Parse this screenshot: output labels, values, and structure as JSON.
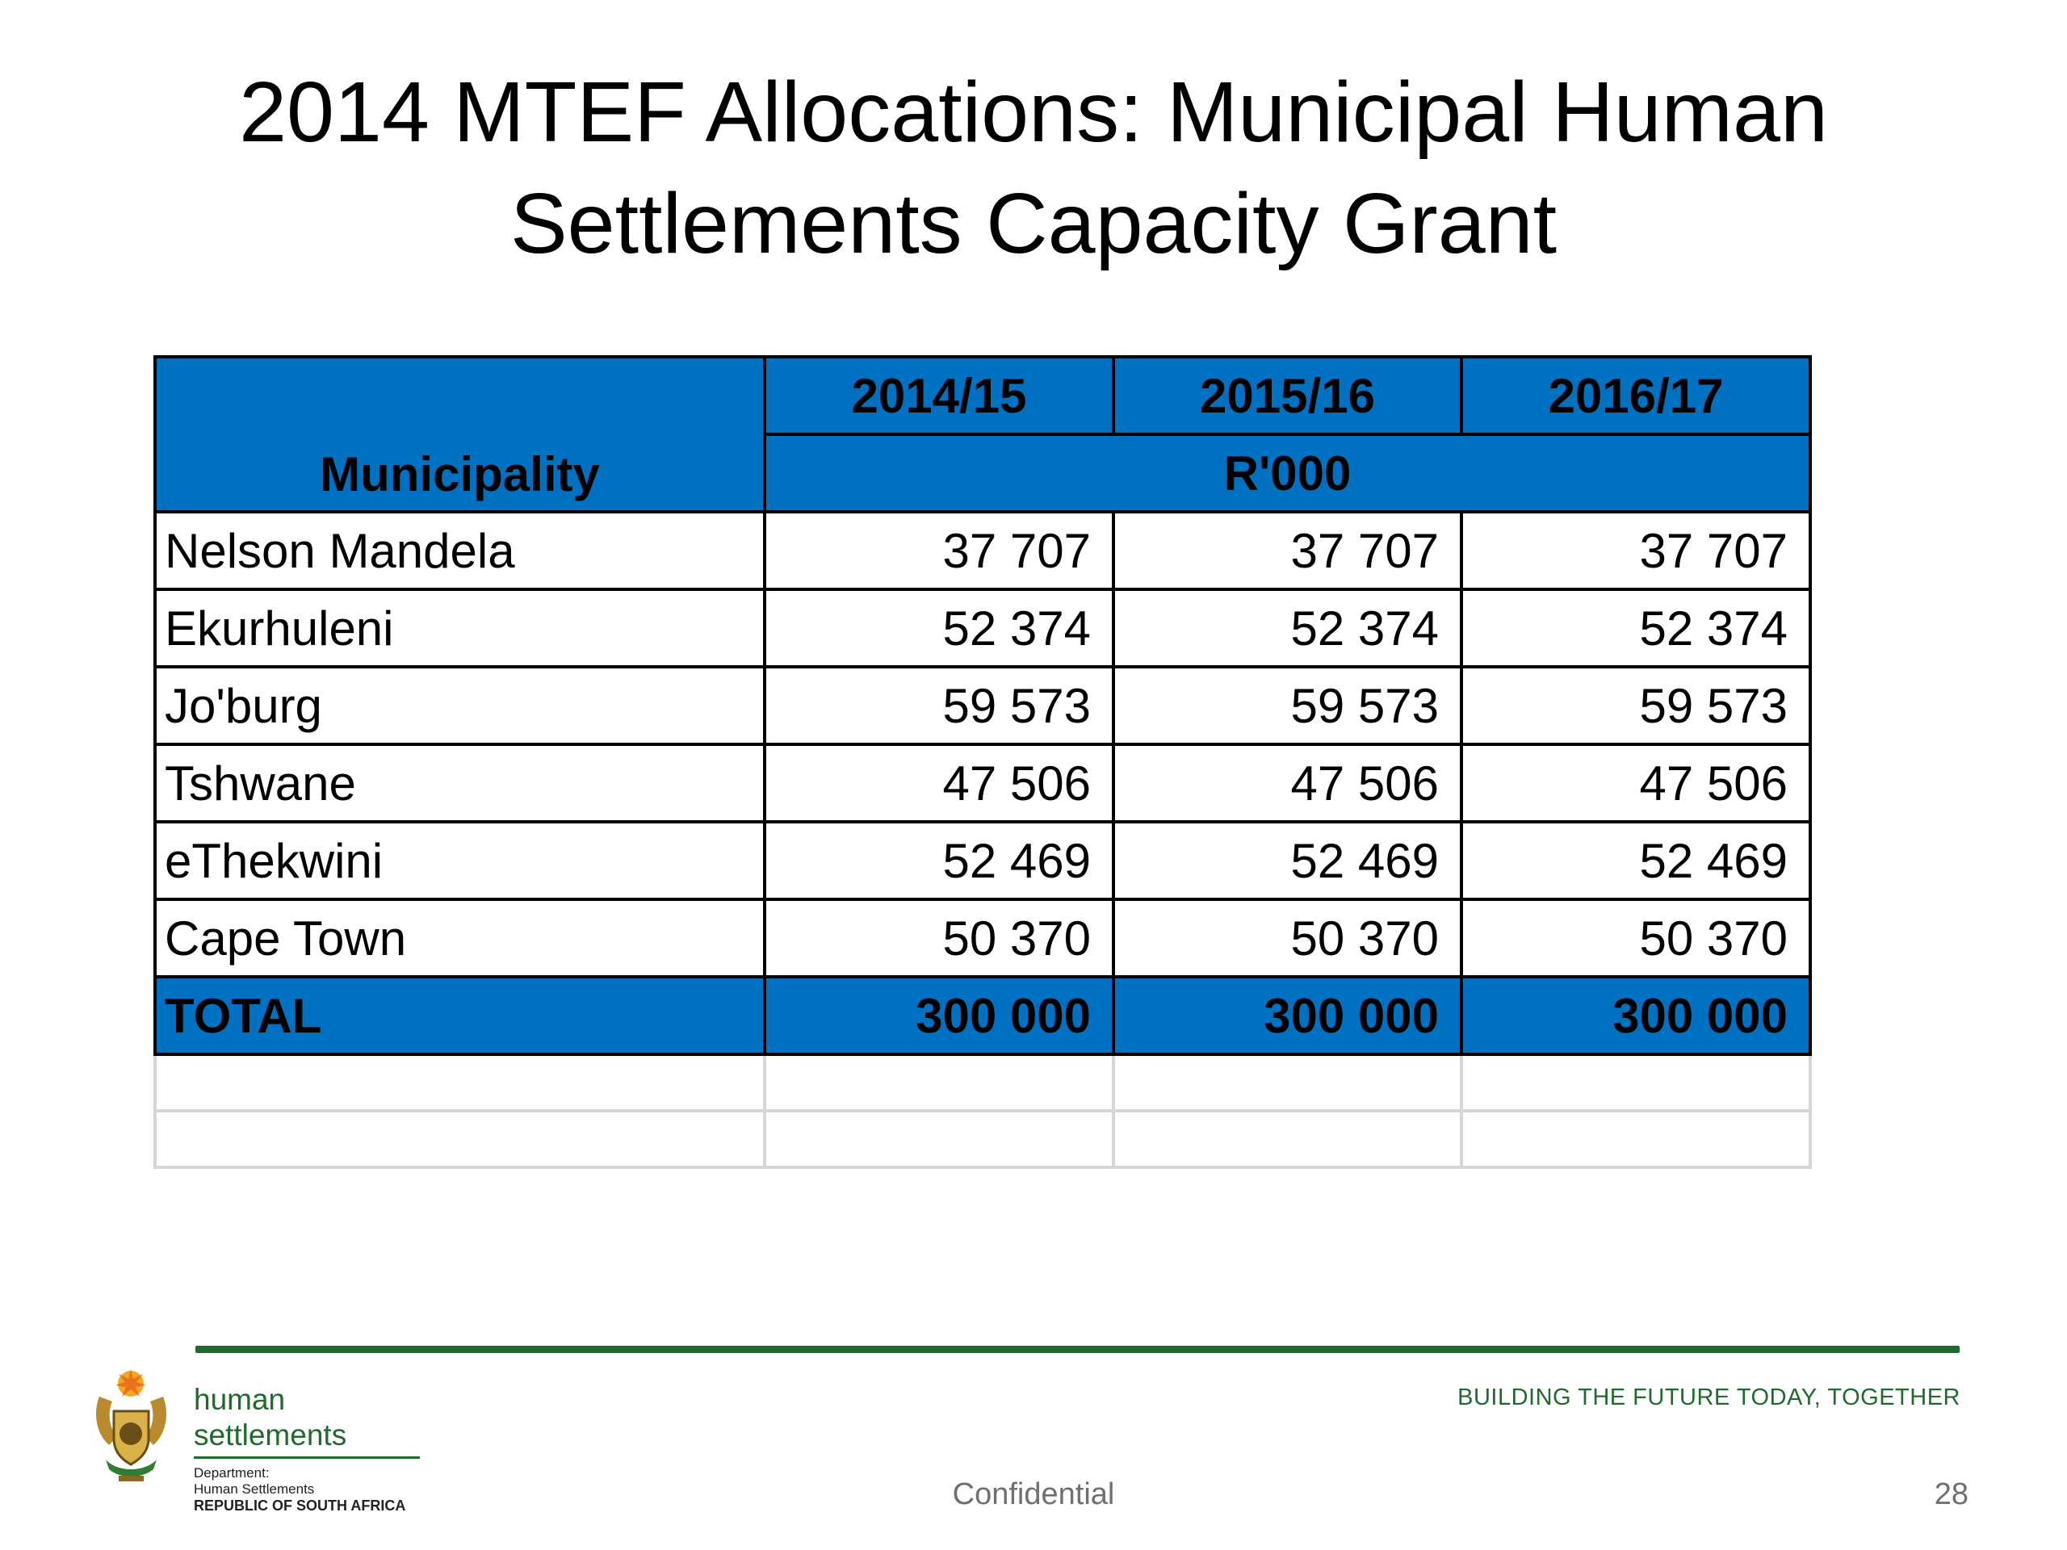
{
  "title": {
    "line1": "2014 MTEF Allocations: Municipal Human",
    "line2": "Settlements Capacity Grant"
  },
  "table": {
    "header": {
      "municipality": "Municipality",
      "years": [
        "2014/15",
        "2015/16",
        "2016/17"
      ],
      "unit": "R'000"
    },
    "rows": [
      {
        "name": "Nelson Mandela",
        "values": [
          "37 707",
          "37 707",
          "37 707"
        ]
      },
      {
        "name": "Ekurhuleni",
        "values": [
          "52 374",
          "52 374",
          "52 374"
        ]
      },
      {
        "name": "Jo'burg",
        "values": [
          "59 573",
          "59 573",
          "59 573"
        ]
      },
      {
        "name": "Tshwane",
        "values": [
          "47 506",
          "47 506",
          "47 506"
        ]
      },
      {
        "name": "eThekwini",
        "values": [
          "52 469",
          "52 469",
          "52 469"
        ]
      },
      {
        "name": "Cape Town",
        "values": [
          "50 370",
          "50 370",
          "50 370"
        ]
      }
    ],
    "total": {
      "name": "TOTAL",
      "values": [
        "300 000",
        "300 000",
        "300 000"
      ]
    },
    "colors": {
      "header_fill": "#0070c0",
      "grid": "#000000",
      "empty_grid": "#d6d6d6"
    }
  },
  "footer": {
    "department_name": "human settlements",
    "department_line1": "Department:",
    "department_line2": "Human Settlements",
    "country": "REPUBLIC OF SOUTH AFRICA",
    "tagline": "BUILDING THE FUTURE TODAY, TOGETHER",
    "confidential": "Confidential",
    "page_number": "28",
    "logo": "coat-of-arms-icon",
    "accent_color": "#1f6b2e"
  }
}
